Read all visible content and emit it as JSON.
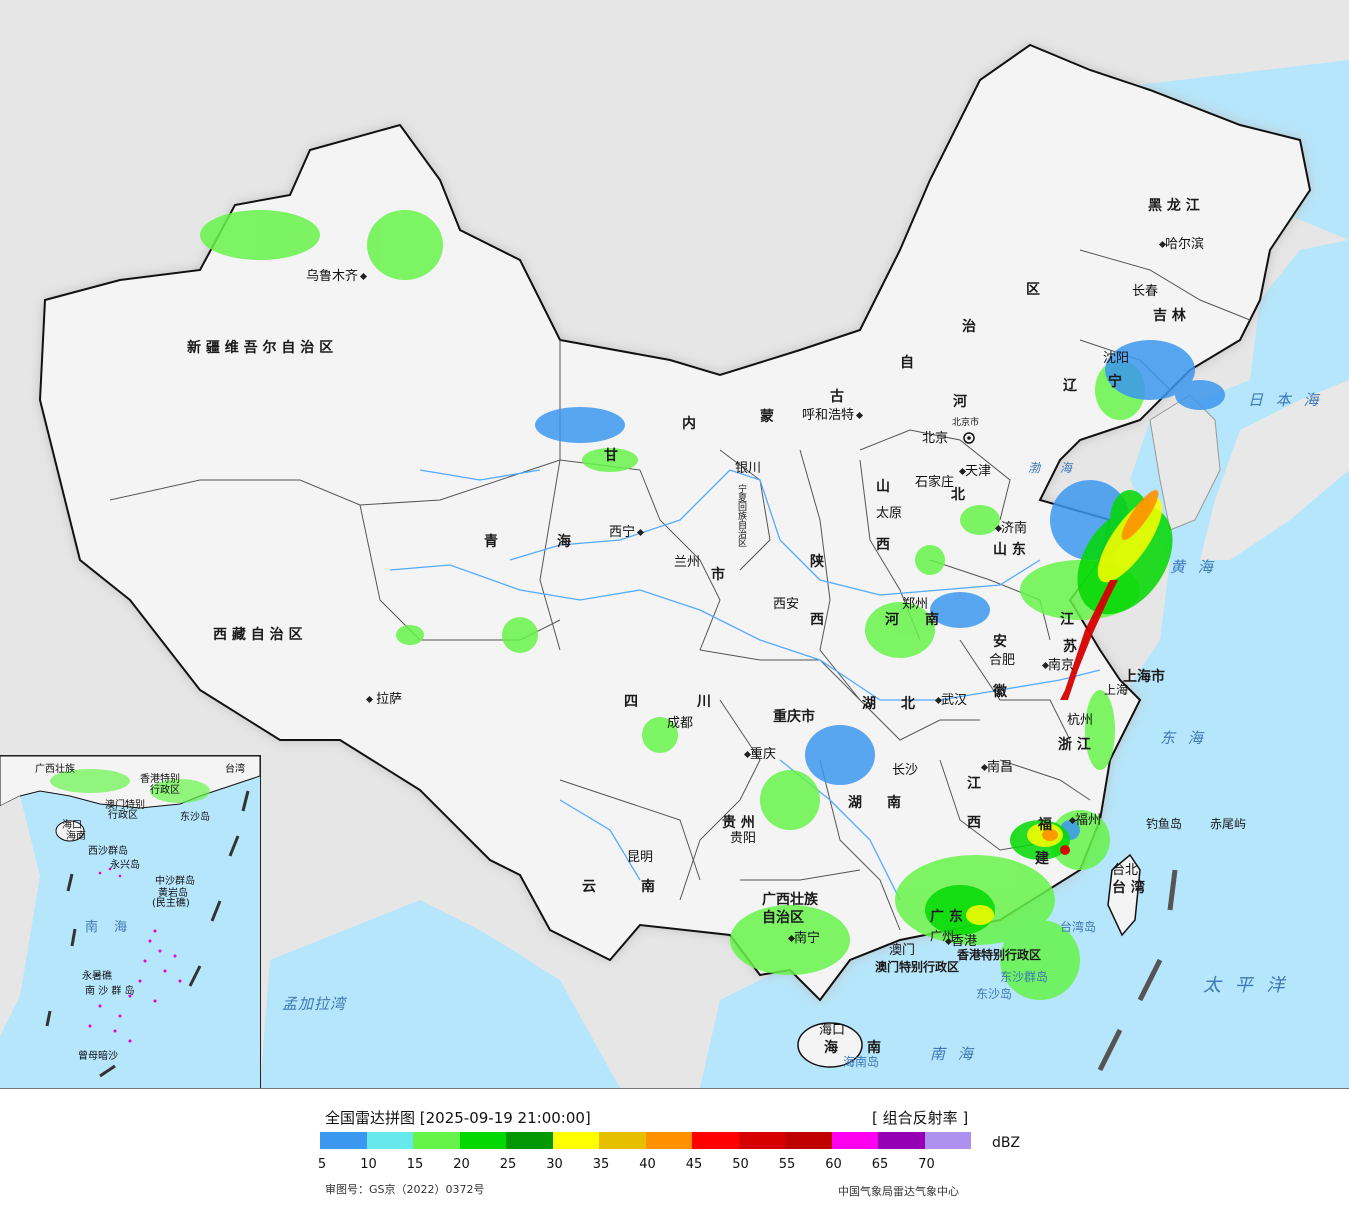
{
  "colors": {
    "ocean": "#b6e6fb",
    "land_outside": "#e6e6e6",
    "china_land": "#f4f4f4",
    "border": "#111111",
    "river": "#55aaff"
  },
  "provinces": [
    {
      "name": "新 疆 维 吾 尔 自 治 区"
    },
    {
      "name": "西 藏 自 治 区"
    },
    {
      "name": "青"
    },
    {
      "name": "海"
    },
    {
      "name": "甘"
    },
    {
      "name": "内"
    },
    {
      "name": "蒙"
    },
    {
      "name": "古"
    },
    {
      "name": "自"
    },
    {
      "name": "治"
    },
    {
      "name": "区"
    },
    {
      "name": "黑 龙 江"
    },
    {
      "name": "吉 林"
    },
    {
      "name": "辽"
    },
    {
      "name": "宁"
    },
    {
      "name": "河"
    },
    {
      "name": "北"
    },
    {
      "name": "山"
    },
    {
      "name": "西"
    },
    {
      "name": "陕"
    },
    {
      "name": "西"
    },
    {
      "name": "山 东"
    },
    {
      "name": "河"
    },
    {
      "name": "南"
    },
    {
      "name": "江"
    },
    {
      "name": "苏"
    },
    {
      "name": "安"
    },
    {
      "name": "徽"
    },
    {
      "name": "四"
    },
    {
      "name": "川"
    },
    {
      "name": "重庆市"
    },
    {
      "name": "湖"
    },
    {
      "name": "北"
    },
    {
      "name": "湖"
    },
    {
      "name": "南"
    },
    {
      "name": "江"
    },
    {
      "name": "西"
    },
    {
      "name": "浙 江"
    },
    {
      "name": "福"
    },
    {
      "name": "建"
    },
    {
      "name": "贵 州"
    },
    {
      "name": "云"
    },
    {
      "name": "南"
    },
    {
      "name": "广西壮族"
    },
    {
      "name": "自治区"
    },
    {
      "name": "广 东"
    },
    {
      "name": "海"
    },
    {
      "name": "南"
    },
    {
      "name": "台 湾"
    },
    {
      "name": "上海市"
    },
    {
      "name": "市"
    },
    {
      "name": "宁夏回族自治区"
    }
  ],
  "cities": [
    {
      "name": "乌鲁木齐"
    },
    {
      "name": "拉萨"
    },
    {
      "name": "西宁"
    },
    {
      "name": "兰州"
    },
    {
      "name": "银川"
    },
    {
      "name": "呼和浩特"
    },
    {
      "name": "北京"
    },
    {
      "name": "北京市"
    },
    {
      "name": "天津"
    },
    {
      "name": "石家庄"
    },
    {
      "name": "太原"
    },
    {
      "name": "济南"
    },
    {
      "name": "西安"
    },
    {
      "name": "郑州"
    },
    {
      "name": "合肥"
    },
    {
      "name": "南京"
    },
    {
      "name": "上海"
    },
    {
      "name": "杭州"
    },
    {
      "name": "武汉"
    },
    {
      "name": "成都"
    },
    {
      "name": "重庆"
    },
    {
      "name": "长沙"
    },
    {
      "name": "南昌"
    },
    {
      "name": "福州"
    },
    {
      "name": "台北"
    },
    {
      "name": "贵阳"
    },
    {
      "name": "昆明"
    },
    {
      "name": "南宁"
    },
    {
      "name": "广州"
    },
    {
      "name": "香港"
    },
    {
      "name": "澳门"
    },
    {
      "name": "海口"
    },
    {
      "name": "沈阳"
    },
    {
      "name": "长春"
    },
    {
      "name": "哈尔滨"
    }
  ],
  "seas": [
    {
      "name": "日 本 海"
    },
    {
      "name": "黄 海"
    },
    {
      "name": "东 海"
    },
    {
      "name": "太 平 洋"
    },
    {
      "name": "南 海"
    },
    {
      "name": "孟加拉湾"
    },
    {
      "name": "渤 海"
    }
  ],
  "islands": [
    {
      "name": "钓鱼岛"
    },
    {
      "name": "赤尾屿"
    },
    {
      "name": "台湾岛"
    },
    {
      "name": "东沙岛"
    },
    {
      "name": "东沙群岛"
    },
    {
      "name": "海南岛"
    },
    {
      "name": "香港特别行政区"
    },
    {
      "name": "澳门特别行政区"
    }
  ],
  "inset": {
    "labels": [
      {
        "text": "广西壮族"
      },
      {
        "text": "香港特别"
      },
      {
        "text": "行政区"
      },
      {
        "text": "澳门特别"
      },
      {
        "text": "行政区"
      },
      {
        "text": "台湾"
      },
      {
        "text": "东沙岛"
      },
      {
        "text": "海口"
      },
      {
        "text": "海南"
      },
      {
        "text": "西沙群岛"
      },
      {
        "text": "永兴岛"
      },
      {
        "text": "中沙群岛"
      },
      {
        "text": "黄岩岛"
      },
      {
        "text": "(民主礁)"
      },
      {
        "text": "南 海"
      },
      {
        "text": "永暑礁"
      },
      {
        "text": "南 沙 群 岛"
      },
      {
        "text": "曾母暗沙"
      }
    ]
  },
  "legend": {
    "title": "全国雷达拼图 [2025-09-19 21:00:00]",
    "product": "[ 组合反射率 ]",
    "unit": "dBZ",
    "colors": [
      "#3c97ef",
      "#66e8ec",
      "#66f34a",
      "#02d802",
      "#039703",
      "#fefe00",
      "#e6c000",
      "#ff9000",
      "#ff0000",
      "#d60000",
      "#c00000",
      "#ff00f0",
      "#9600b4",
      "#ad90f0"
    ],
    "ticks": [
      "5",
      "10",
      "15",
      "20",
      "25",
      "30",
      "35",
      "40",
      "45",
      "50",
      "55",
      "60",
      "65",
      "70"
    ],
    "review_number": "审图号：GS京（2022）0372号",
    "credit": "中国气象局雷达气象中心"
  }
}
